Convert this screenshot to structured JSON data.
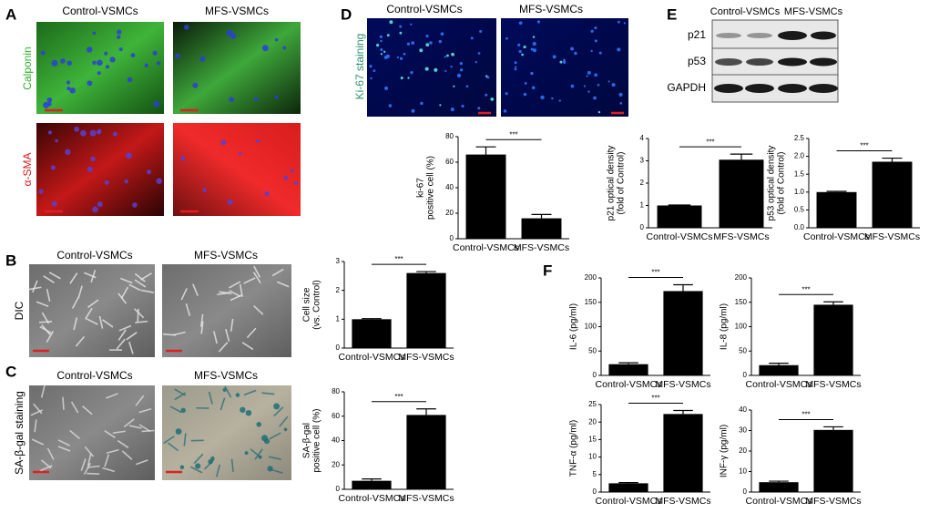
{
  "chart_data": [
    {
      "type": "bar",
      "ylabel": [
        "ki-67",
        "positive cell (%)"
      ],
      "categories": [
        "Control-VSMCs",
        "MFS-VSMCs"
      ],
      "values": [
        66,
        16
      ],
      "errors": [
        6,
        3
      ],
      "annotation": "***",
      "ylim": [
        0,
        80
      ],
      "yticks": [
        0,
        20,
        40,
        60,
        80
      ],
      "color": "#000000"
    },
    {
      "type": "bar",
      "ylabel": [
        "p21 optical density",
        "(fold of Control)"
      ],
      "categories": [
        "Control-VSMCs",
        "MFS-VSMCs"
      ],
      "values": [
        1.0,
        3.05
      ],
      "errors": [
        0.02,
        0.25
      ],
      "annotation": "***",
      "ylim": [
        0,
        4
      ],
      "yticks": [
        0,
        1,
        2,
        3,
        4
      ],
      "color": "#000000"
    },
    {
      "type": "bar",
      "ylabel": [
        "p53 optical density",
        "(fold of Control)"
      ],
      "categories": [
        "Control-VSMCs",
        "MFS-VSMCs"
      ],
      "values": [
        1.0,
        1.85
      ],
      "errors": [
        0.02,
        0.1
      ],
      "annotation": "***",
      "ylim": [
        0,
        2.5
      ],
      "yticks": [
        {
          "value": 0,
          "label": "0.0"
        },
        0.5,
        {
          "value": 1,
          "label": "1.0"
        },
        1.5,
        {
          "value": 2,
          "label": "2.0"
        },
        2.5
      ],
      "color": "#000000"
    },
    {
      "type": "bar",
      "ylabel": [
        "Cell size",
        "(vs. Control)"
      ],
      "categories": [
        "Control-VSMCs",
        "MFS-VSMCs"
      ],
      "values": [
        1.0,
        2.6
      ],
      "errors": [
        0.02,
        0.05
      ],
      "annotation": "***",
      "ylim": [
        0,
        3
      ],
      "yticks": [
        0,
        1,
        2,
        3
      ],
      "color": "#000000"
    },
    {
      "type": "bar",
      "ylabel": [
        "SA-β-gal",
        "positive cell (%)"
      ],
      "categories": [
        "Control-VSMCs",
        "MFS-VSMCs"
      ],
      "values": [
        7,
        61
      ],
      "errors": [
        1.5,
        5
      ],
      "annotation": "***",
      "ylim": [
        0,
        80
      ],
      "yticks": [
        0,
        20,
        40,
        60,
        80
      ],
      "color": "#000000"
    },
    {
      "type": "bar",
      "ylabel": [
        "IL-6 (pg/ml)"
      ],
      "categories": [
        "Control-VSMCs",
        "MFS-VSMCs"
      ],
      "values": [
        23,
        173
      ],
      "errors": [
        3,
        13
      ],
      "annotation": "***",
      "ylim": [
        0,
        200
      ],
      "yticks": [
        0,
        50,
        100,
        150,
        200
      ],
      "color": "#000000"
    },
    {
      "type": "bar",
      "ylabel": [
        "IL-8 (pg/ml)"
      ],
      "categories": [
        "Control-VSMCs",
        "MFS-VSMCs"
      ],
      "values": [
        21,
        145
      ],
      "errors": [
        4,
        6
      ],
      "annotation": "***",
      "ylim": [
        0,
        200
      ],
      "yticks": [
        0,
        50,
        100,
        150,
        200
      ],
      "color": "#000000"
    },
    {
      "type": "bar",
      "ylabel": [
        "TNF-α (pg/ml)"
      ],
      "categories": [
        "Control-VSMCs",
        "MFS-VSMCs"
      ],
      "values": [
        2.5,
        22.3
      ],
      "errors": [
        0.2,
        1.0
      ],
      "annotation": "***",
      "ylim": [
        0,
        25
      ],
      "yticks": [
        0,
        5,
        10,
        15,
        20,
        25
      ],
      "color": "#000000"
    },
    {
      "type": "bar",
      "ylabel": [
        "INF-γ (pg/ml)"
      ],
      "categories": [
        "Control-VSMCs",
        "MFS-VSMCs"
      ],
      "values": [
        4.8,
        30.3
      ],
      "errors": [
        0.5,
        1.5
      ],
      "annotation": "***",
      "ylim": [
        0,
        40
      ],
      "yticks": [
        0,
        10,
        20,
        30,
        40
      ],
      "color": "#000000"
    }
  ],
  "panels": [
    {
      "letter": "A",
      "columns": [
        "Control-VSMCs",
        "MFS-VSMCs"
      ],
      "rows": [
        "Calponin",
        "α-SMA"
      ]
    },
    {
      "letter": "B",
      "columns": [
        "Control-VSMCs",
        "MFS-VSMCs"
      ],
      "rows": [
        "DIC"
      ]
    },
    {
      "letter": "C",
      "columns": [
        "Control-VSMCs",
        "MFS-VSMCs"
      ],
      "rows": [
        "SA-β-gal staining"
      ]
    },
    {
      "letter": "D",
      "columns": [
        "Control-VSMCs",
        "MFS-VSMCs"
      ],
      "rows": [
        "Ki-67 staining"
      ]
    },
    {
      "letter": "E",
      "columns": [
        "Control-VSMCs",
        "MFS-VSMCs"
      ],
      "rows": [
        "p21",
        "p53",
        "GAPDH"
      ]
    },
    {
      "letter": "F"
    }
  ]
}
